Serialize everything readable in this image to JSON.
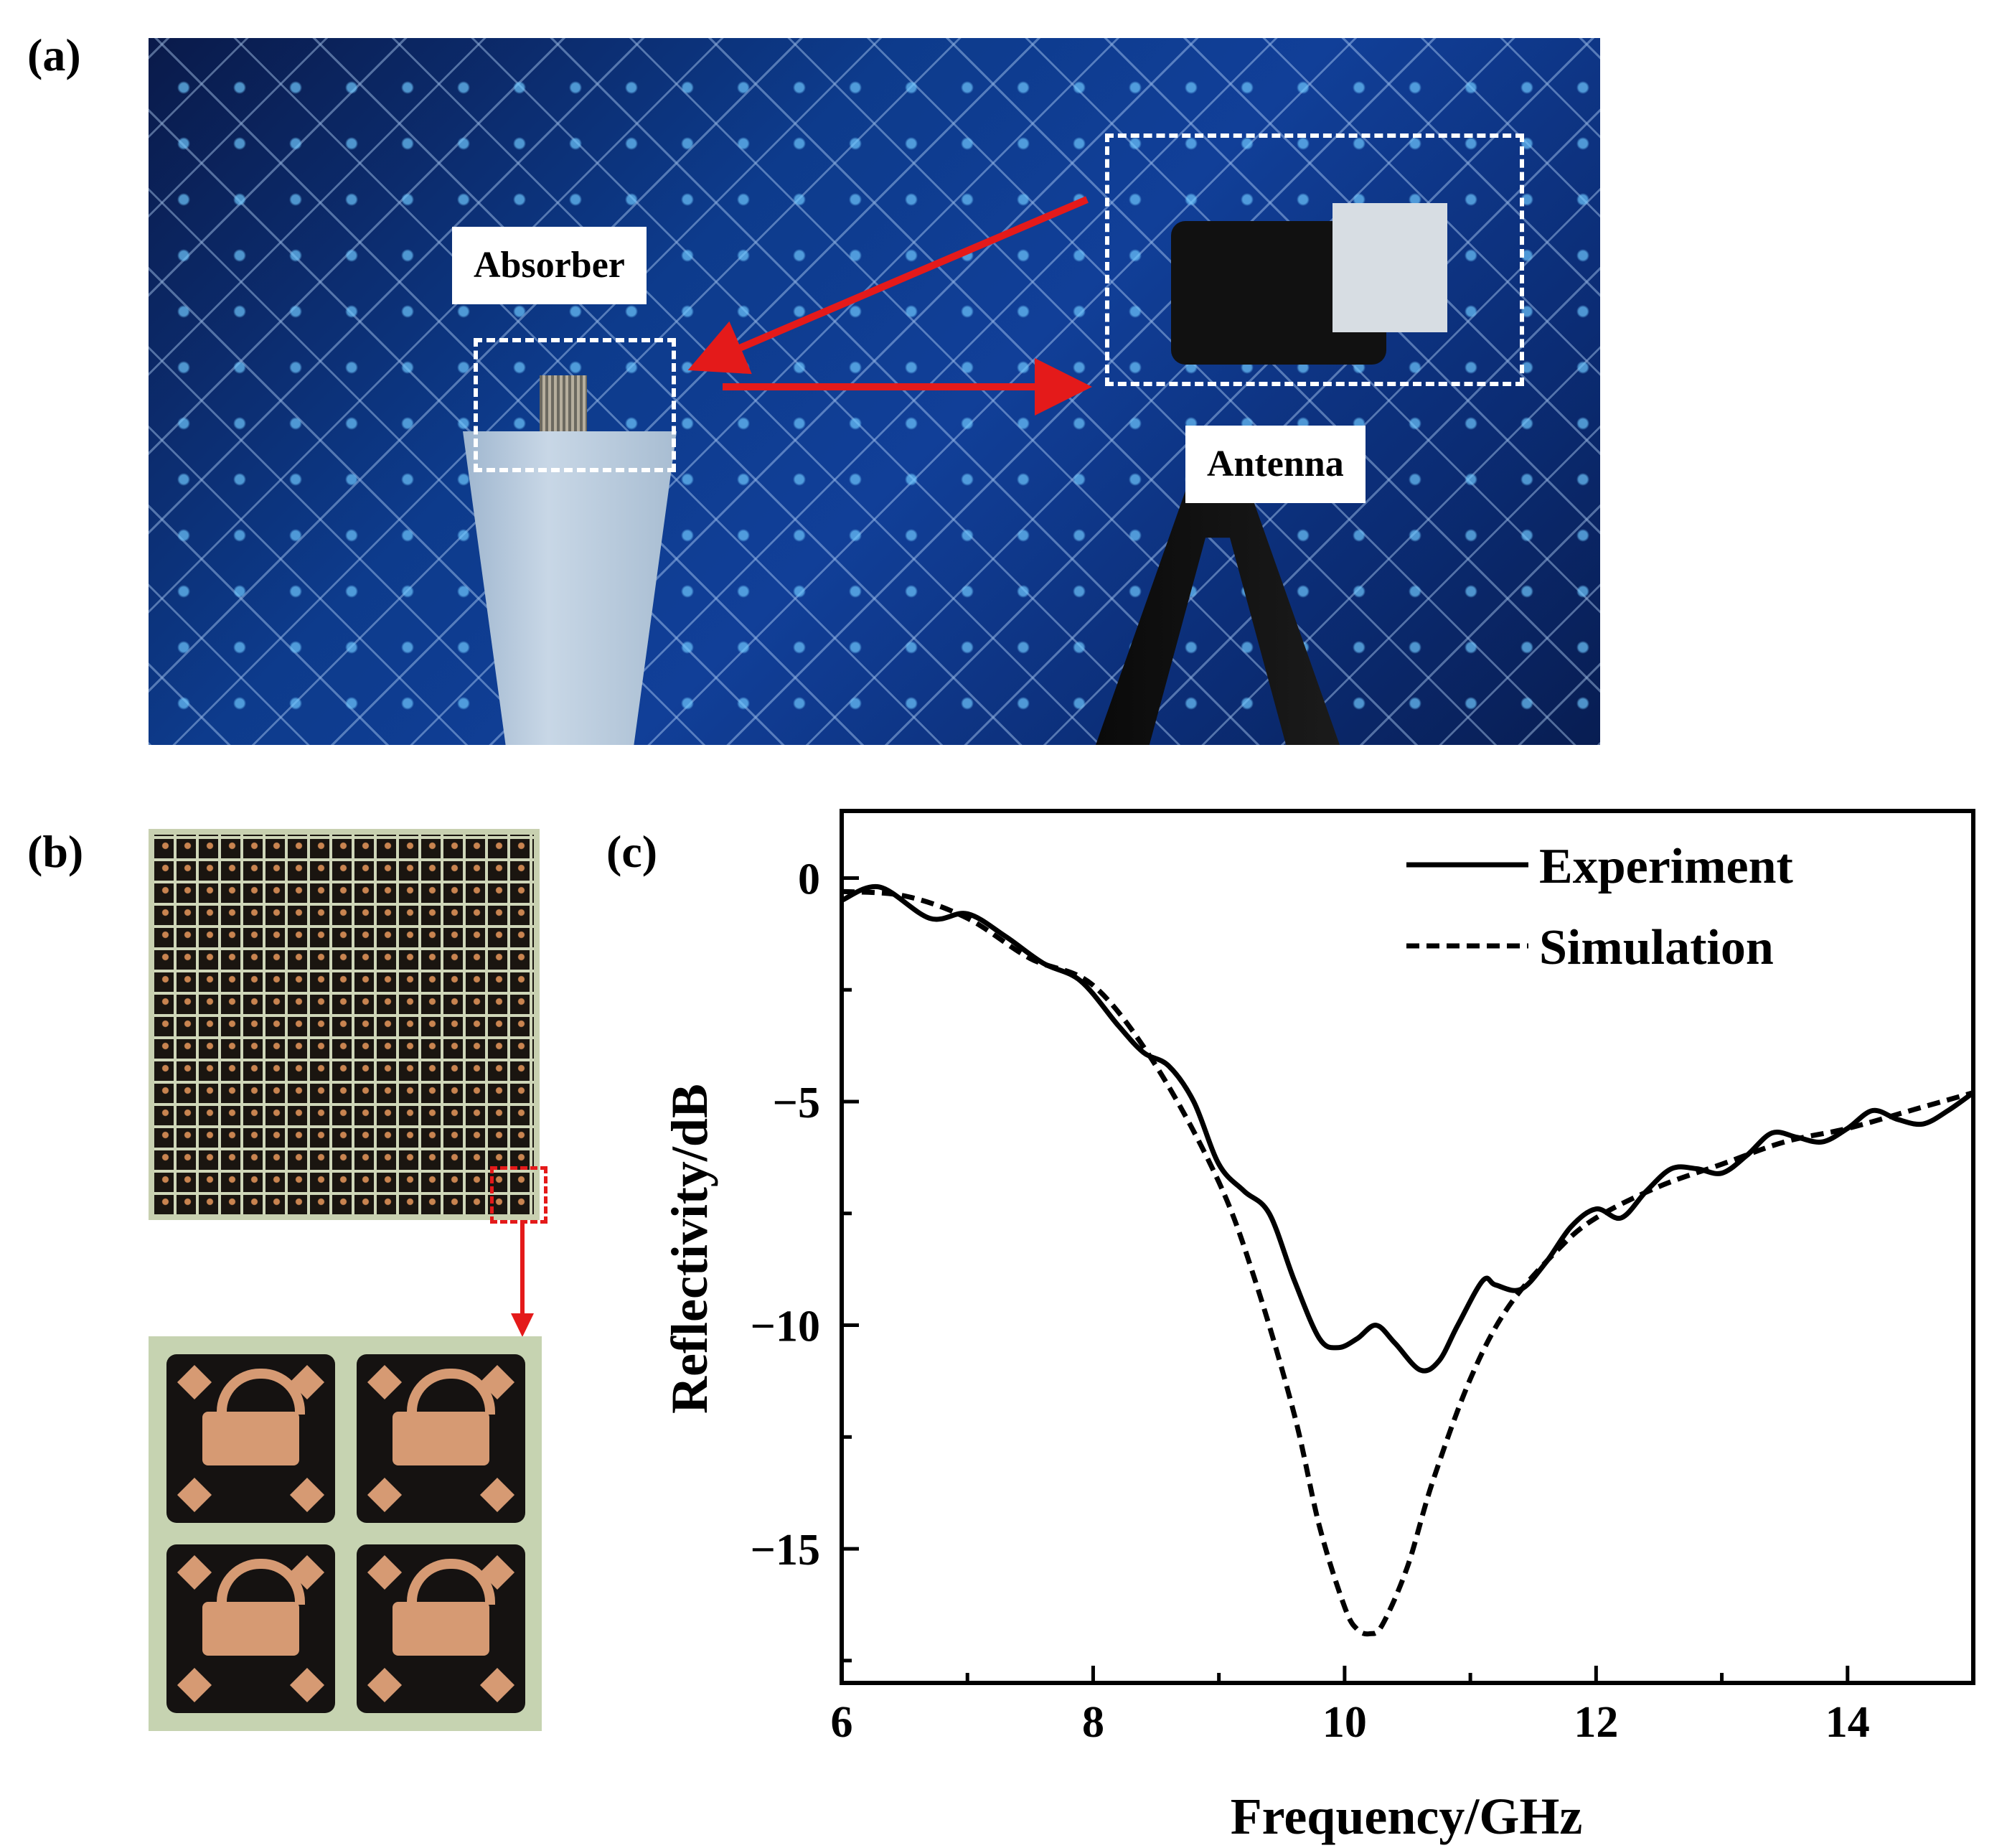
{
  "panels": {
    "a": "(a)",
    "b": "(b)",
    "c": "(c)"
  },
  "photo_a": {
    "absorber_label": "Absorber",
    "antenna_label": "Antenna",
    "arrow_color": "#e41a1a"
  },
  "chart_data": {
    "type": "line",
    "title": "",
    "xlabel": "Frequency/GHz",
    "ylabel": "Reflectivity/dB",
    "xlim": [
      6,
      15
    ],
    "ylim": [
      -18,
      1.5
    ],
    "xticks": [
      6,
      8,
      10,
      12,
      14
    ],
    "yticks": [
      0,
      -5,
      -10,
      -15
    ],
    "ytick_labels": [
      "0",
      "−5",
      "−10",
      "−15"
    ],
    "legend_position": "top-right",
    "series": [
      {
        "name": "Experiment",
        "style": "solid",
        "x": [
          6.0,
          6.3,
          6.7,
          7.0,
          7.3,
          7.6,
          7.9,
          8.2,
          8.4,
          8.6,
          8.8,
          9.0,
          9.2,
          9.4,
          9.6,
          9.8,
          9.95,
          10.1,
          10.25,
          10.4,
          10.6,
          10.75,
          10.9,
          11.1,
          11.2,
          11.4,
          11.6,
          11.8,
          12.0,
          12.2,
          12.4,
          12.6,
          12.8,
          13.0,
          13.2,
          13.4,
          13.6,
          13.8,
          14.0,
          14.2,
          14.4,
          14.6,
          14.8,
          15.0
        ],
        "values": [
          -0.5,
          -0.2,
          -0.9,
          -0.8,
          -1.3,
          -1.9,
          -2.3,
          -3.3,
          -3.9,
          -4.2,
          -5.0,
          -6.4,
          -7.0,
          -7.5,
          -9.0,
          -10.3,
          -10.5,
          -10.3,
          -10.0,
          -10.4,
          -11.0,
          -10.8,
          -10.0,
          -9.0,
          -9.1,
          -9.2,
          -8.6,
          -7.8,
          -7.4,
          -7.6,
          -7.0,
          -6.5,
          -6.5,
          -6.6,
          -6.2,
          -5.7,
          -5.8,
          -5.9,
          -5.6,
          -5.2,
          -5.4,
          -5.5,
          -5.2,
          -4.8
        ]
      },
      {
        "name": "Simulation",
        "style": "dashed",
        "x": [
          6.0,
          6.5,
          7.0,
          7.5,
          8.0,
          8.5,
          9.0,
          9.3,
          9.6,
          9.8,
          10.0,
          10.1,
          10.2,
          10.3,
          10.5,
          10.7,
          11.0,
          11.3,
          11.7,
          12.0,
          12.5,
          13.0,
          13.5,
          14.0,
          14.5,
          15.0
        ],
        "values": [
          -0.3,
          -0.4,
          -0.9,
          -1.8,
          -2.4,
          -4.2,
          -6.8,
          -9.1,
          -12.0,
          -14.5,
          -16.3,
          -16.8,
          -16.9,
          -16.7,
          -15.4,
          -13.5,
          -11.2,
          -9.6,
          -8.3,
          -7.6,
          -6.9,
          -6.4,
          -5.9,
          -5.6,
          -5.2,
          -4.8
        ]
      }
    ]
  }
}
